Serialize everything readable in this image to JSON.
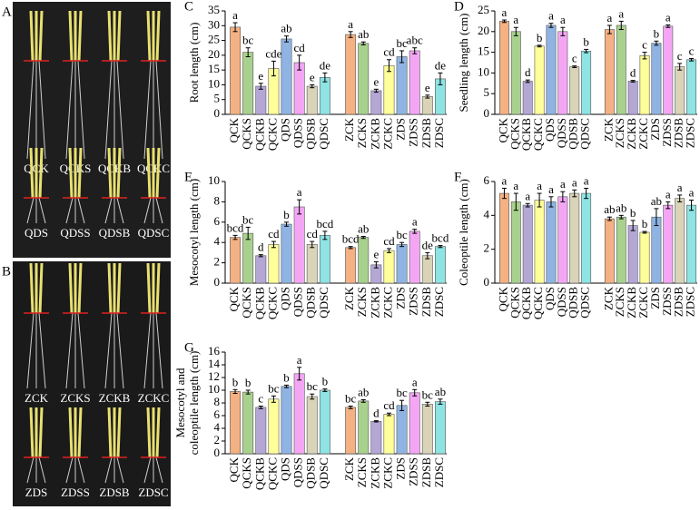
{
  "photos": [
    {
      "panel": "A",
      "labels": [
        "QCK",
        "QCKS",
        "QCKB",
        "QCKC",
        "QDS",
        "QDSS",
        "QDSB",
        "QDSC"
      ]
    },
    {
      "panel": "B",
      "labels": [
        "ZCK",
        "ZCKS",
        "ZCKB",
        "ZCKC",
        "ZDS",
        "ZDSS",
        "ZDSB",
        "ZDSC"
      ]
    }
  ],
  "chart_data": [
    {
      "type": "bar",
      "panel": "C",
      "y_label": [
        "Root length (cm)"
      ],
      "categories": [
        "QCK",
        "QCKS",
        "QCKB",
        "QCKC",
        "QDS",
        "QDSS",
        "QDSB",
        "QDSC",
        null,
        "ZCK",
        "ZCKS",
        "ZCKB",
        "ZCKC",
        "ZDS",
        "ZDSS",
        "ZDSB",
        "ZDSC"
      ],
      "colors": [
        "#f4b183",
        "#a9d18e",
        "#b4a7d6",
        "#ffff99",
        "#8fb4e3",
        "#f4a6f4",
        "#d9d3b8",
        "#8ee3e3",
        null,
        "#f4b183",
        "#a9d18e",
        "#b4a7d6",
        "#ffff99",
        "#8fb4e3",
        "#f4a6f4",
        "#d9d3b8",
        "#8ee3e3"
      ],
      "values": [
        29.5,
        21,
        9.5,
        15.5,
        25.5,
        17.5,
        9.5,
        12.5,
        null,
        27,
        24,
        8,
        16.5,
        19.5,
        21.5,
        6,
        12
      ],
      "errors": [
        1.5,
        1.5,
        1,
        2.5,
        1,
        2.5,
        0.5,
        1.5,
        null,
        1,
        0.5,
        0.5,
        2,
        2,
        1,
        0.5,
        2
      ],
      "annotations": [
        "a",
        "bc",
        "e",
        "cde",
        "ab",
        "cd",
        "e",
        "de",
        null,
        "a",
        "ab",
        "e",
        "cd",
        "bc",
        "abc",
        "e",
        "de"
      ],
      "ylim": [
        0,
        35
      ],
      "yticks": [
        0,
        5,
        10,
        15,
        20,
        25,
        30,
        35
      ]
    },
    {
      "type": "bar",
      "panel": "D",
      "y_label": [
        "Seedling length (cm)"
      ],
      "categories": [
        "QCK",
        "QCKS",
        "QCKB",
        "QCKC",
        "QDS",
        "QDSS",
        "QDSB",
        "QDSC",
        null,
        "ZCK",
        "ZCKS",
        "ZCKB",
        "ZCKC",
        "ZDS",
        "ZDSS",
        "ZDSB",
        "ZDSC"
      ],
      "colors": [
        "#f4b183",
        "#a9d18e",
        "#b4a7d6",
        "#ffff99",
        "#8fb4e3",
        "#f4a6f4",
        "#d9d3b8",
        "#8ee3e3",
        null,
        "#f4b183",
        "#a9d18e",
        "#b4a7d6",
        "#ffff99",
        "#8fb4e3",
        "#f4a6f4",
        "#d9d3b8",
        "#8ee3e3"
      ],
      "values": [
        22.5,
        20,
        8,
        16.5,
        21.5,
        20,
        11.5,
        15.3,
        null,
        20.5,
        21.5,
        8,
        14.2,
        17.2,
        21.3,
        11.5,
        13.2
      ],
      "errors": [
        0.3,
        1,
        0.3,
        0.2,
        0.5,
        1,
        0.2,
        0.4,
        null,
        1,
        1,
        0.2,
        0.8,
        0.5,
        0.3,
        0.8,
        0.3
      ],
      "annotations": [
        "a",
        "a",
        "d",
        "b",
        "a",
        "a",
        "c",
        "b",
        null,
        "a",
        "a",
        "d",
        "c",
        "b",
        "a",
        "c",
        "c"
      ],
      "ylim": [
        0,
        25
      ],
      "yticks": [
        0,
        5,
        10,
        15,
        20,
        25
      ]
    },
    {
      "type": "bar",
      "panel": "E",
      "y_label": [
        "Mesocotyl length (cm)"
      ],
      "categories": [
        "QCK",
        "QCKS",
        "QCKB",
        "QCKC",
        "QDS",
        "QDSS",
        "QDSB",
        "QDSC",
        null,
        "ZCK",
        "ZCKS",
        "ZCKB",
        "ZCKC",
        "ZDS",
        "ZDSS",
        "ZDSB",
        "ZDSC"
      ],
      "colors": [
        "#f4b183",
        "#a9d18e",
        "#b4a7d6",
        "#ffff99",
        "#8fb4e3",
        "#f4a6f4",
        "#d9d3b8",
        "#8ee3e3",
        null,
        "#f4b183",
        "#a9d18e",
        "#b4a7d6",
        "#ffff99",
        "#8fb4e3",
        "#f4a6f4",
        "#d9d3b8",
        "#8ee3e3"
      ],
      "values": [
        4.5,
        4.9,
        2.7,
        3.8,
        5.8,
        7.5,
        3.8,
        4.7,
        null,
        3.5,
        4.5,
        1.8,
        3.2,
        3.8,
        5.1,
        2.7,
        3.6
      ],
      "errors": [
        0.2,
        0.6,
        0.1,
        0.3,
        0.2,
        0.7,
        0.3,
        0.4,
        null,
        0.1,
        0.1,
        0.3,
        0.2,
        0.2,
        0.2,
        0.3,
        0.1
      ],
      "annotations": [
        "bcd",
        "bc",
        "d",
        "cd",
        "b",
        "a",
        "cd",
        "bcd",
        null,
        "bcd",
        "ab",
        "e",
        "cd",
        "bc",
        "a",
        "de",
        "bcd"
      ],
      "ylim": [
        0,
        10
      ],
      "yticks": [
        0,
        2,
        4,
        6,
        8,
        10
      ]
    },
    {
      "type": "bar",
      "panel": "F",
      "y_label": [
        "Coleoptile length (cm)"
      ],
      "categories": [
        "QCK",
        "QCKS",
        "QCKB",
        "QCKC",
        "QDS",
        "QDSS",
        "QDSB",
        "QDSC",
        null,
        "ZCK",
        "ZCKS",
        "ZCKB",
        "ZCKC",
        "ZDS",
        "ZDSS",
        "ZDSB",
        "ZDSC"
      ],
      "colors": [
        "#f4b183",
        "#a9d18e",
        "#b4a7d6",
        "#ffff99",
        "#8fb4e3",
        "#f4a6f4",
        "#d9d3b8",
        "#8ee3e3",
        null,
        "#f4b183",
        "#a9d18e",
        "#b4a7d6",
        "#ffff99",
        "#8fb4e3",
        "#f4a6f4",
        "#d9d3b8",
        "#8ee3e3"
      ],
      "values": [
        5.3,
        4.8,
        4.6,
        4.9,
        4.8,
        5.1,
        5.3,
        5.3,
        null,
        3.8,
        3.9,
        3.4,
        3.0,
        3.9,
        4.6,
        5.0,
        4.6
      ],
      "errors": [
        0.3,
        0.5,
        0.1,
        0.4,
        0.3,
        0.3,
        0.2,
        0.3,
        null,
        0.1,
        0.1,
        0.3,
        0.05,
        0.5,
        0.2,
        0.2,
        0.3
      ],
      "annotations": [
        "a",
        "a",
        "a",
        "a",
        "a",
        "a",
        "a",
        "a",
        null,
        "ab",
        "ab",
        "b",
        "b",
        "ab",
        "a",
        "a",
        "a"
      ],
      "ylim": [
        0,
        6
      ],
      "yticks": [
        0,
        2,
        4,
        6
      ]
    },
    {
      "type": "bar",
      "panel": "G",
      "y_label": [
        "Mesocotyl and",
        "coleoptile length (cm)"
      ],
      "categories": [
        "QCK",
        "QCKS",
        "QCKB",
        "QCKC",
        "QDS",
        "QDSS",
        "QDSB",
        "QDSC",
        null,
        "ZCK",
        "ZCKS",
        "ZCKB",
        "ZCKC",
        "ZDS",
        "ZDSS",
        "ZDSB",
        "ZDSC"
      ],
      "colors": [
        "#f4b183",
        "#a9d18e",
        "#b4a7d6",
        "#ffff99",
        "#8fb4e3",
        "#f4a6f4",
        "#d9d3b8",
        "#8ee3e3",
        null,
        "#f4b183",
        "#a9d18e",
        "#b4a7d6",
        "#ffff99",
        "#8fb4e3",
        "#f4a6f4",
        "#d9d3b8",
        "#8ee3e3"
      ],
      "values": [
        9.8,
        9.7,
        7.3,
        8.6,
        10.6,
        12.6,
        9.0,
        10.0,
        null,
        7.3,
        8.3,
        5.1,
        6.2,
        7.6,
        9.6,
        7.8,
        8.2
      ],
      "errors": [
        0.3,
        0.3,
        0.2,
        0.5,
        0.2,
        1,
        0.4,
        0.2,
        null,
        0.2,
        0.2,
        0.1,
        0.2,
        0.8,
        0.5,
        0.3,
        0.4
      ],
      "annotations": [
        "b",
        "b",
        "c",
        "bc",
        "b",
        "a",
        "bc",
        "b",
        null,
        "bc",
        "ab",
        "d",
        "cd",
        "bc",
        "a",
        "bc",
        "ab"
      ],
      "ylim": [
        0,
        16
      ],
      "yticks": [
        0,
        2,
        4,
        6,
        8,
        10,
        12,
        14,
        16
      ]
    }
  ]
}
